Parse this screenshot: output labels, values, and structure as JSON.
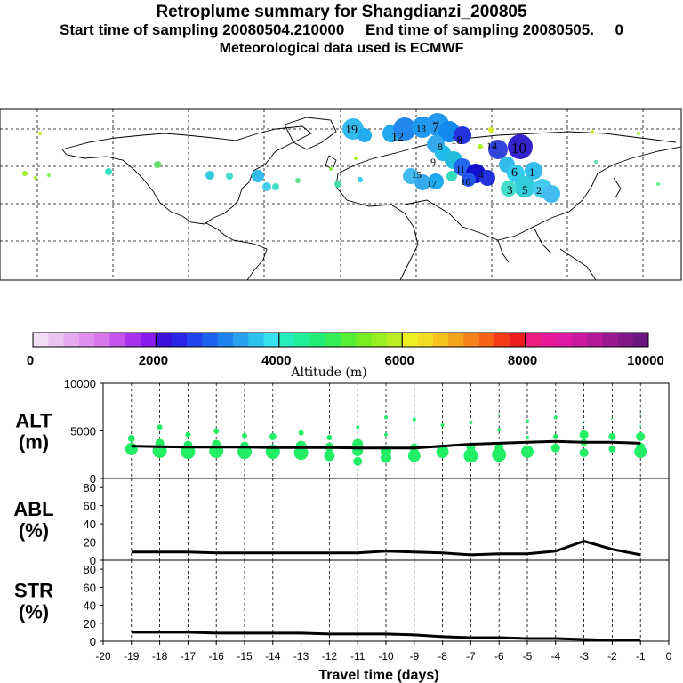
{
  "title": "Retroplume summary for Shangdianzi_200805",
  "subtitle_start": "Start time of sampling 20080504.210000",
  "subtitle_end": "End time of sampling 20080505.     0",
  "subtitle_met": "Meteorological data used is ECMWF",
  "map": {
    "labels": [
      "19",
      "15",
      "13",
      "12",
      "14",
      "7",
      "18",
      "10",
      "9",
      "17",
      "16",
      "6",
      "1",
      "4",
      "3",
      "2",
      "5",
      "11",
      "8"
    ]
  },
  "colorbar": {
    "tick_labels": [
      "0",
      "2000",
      "4000",
      "6000",
      "8000",
      "10000"
    ],
    "label": "Altitude (m)"
  },
  "chart_data": [
    {
      "type": "scatter+line",
      "panel_label": [
        "ALT",
        "(m)"
      ],
      "xlim": [
        -20,
        0
      ],
      "ylim": [
        0,
        10000
      ],
      "y_ticks": [
        "10000",
        "5000",
        "0"
      ],
      "line_x": [
        -19,
        -18,
        -17,
        -16,
        -15,
        -14,
        -13,
        -12,
        -11,
        -10,
        -9,
        -8,
        -7,
        -6,
        -5,
        -4,
        -3,
        -2,
        -1
      ],
      "line_y": [
        3400,
        3350,
        3300,
        3300,
        3300,
        3250,
        3250,
        3250,
        3200,
        3200,
        3200,
        3400,
        3600,
        3700,
        3800,
        3900,
        3800,
        3800,
        3700
      ],
      "scatter_color": "#22ee66",
      "scatter_points": [
        [
          -19,
          3100,
          7
        ],
        [
          -19,
          4200,
          4
        ],
        [
          -18,
          2900,
          8
        ],
        [
          -18,
          3700,
          5
        ],
        [
          -18,
          5400,
          3
        ],
        [
          -17,
          2800,
          8
        ],
        [
          -17,
          3500,
          5
        ],
        [
          -17,
          4600,
          3
        ],
        [
          -16,
          2900,
          8
        ],
        [
          -16,
          3600,
          5
        ],
        [
          -16,
          5000,
          3
        ],
        [
          -15,
          2800,
          8
        ],
        [
          -15,
          3400,
          5
        ],
        [
          -15,
          4500,
          3
        ],
        [
          -14,
          2800,
          8
        ],
        [
          -14,
          4400,
          4
        ],
        [
          -13,
          2700,
          8
        ],
        [
          -13,
          3400,
          6
        ],
        [
          -13,
          4800,
          3
        ],
        [
          -12,
          2400,
          6
        ],
        [
          -12,
          3300,
          5
        ],
        [
          -12,
          4300,
          3
        ],
        [
          -11,
          1800,
          5
        ],
        [
          -11,
          2900,
          6
        ],
        [
          -11,
          3600,
          6
        ],
        [
          -11,
          5400,
          2
        ],
        [
          -10,
          2200,
          6
        ],
        [
          -10,
          2900,
          6
        ],
        [
          -10,
          4600,
          2
        ],
        [
          -10,
          6400,
          2
        ],
        [
          -9,
          2400,
          7
        ],
        [
          -9,
          3200,
          5
        ],
        [
          -9,
          6200,
          2
        ],
        [
          -8,
          2800,
          7
        ],
        [
          -8,
          5600,
          2
        ],
        [
          -7,
          2400,
          8
        ],
        [
          -7,
          3300,
          5
        ],
        [
          -7,
          5900,
          2
        ],
        [
          -6,
          2500,
          8
        ],
        [
          -6,
          3300,
          5
        ],
        [
          -6,
          5100,
          2
        ],
        [
          -6,
          6700,
          1
        ],
        [
          -5,
          2800,
          7
        ],
        [
          -5,
          4300,
          2
        ],
        [
          -5,
          6000,
          2
        ],
        [
          -4,
          3200,
          5
        ],
        [
          -4,
          4400,
          3
        ],
        [
          -4,
          6400,
          2
        ],
        [
          -3,
          2700,
          5
        ],
        [
          -3,
          3800,
          4
        ],
        [
          -3,
          4600,
          5
        ],
        [
          -3,
          6000,
          1
        ],
        [
          -2,
          3100,
          4
        ],
        [
          -2,
          4400,
          4
        ],
        [
          -2,
          6300,
          1
        ],
        [
          -1,
          2800,
          7
        ],
        [
          -1,
          3300,
          5
        ],
        [
          -1,
          4400,
          5
        ],
        [
          -1,
          5500,
          1
        ],
        [
          -1,
          6800,
          1
        ]
      ],
      "line_color": "#000000"
    },
    {
      "type": "line",
      "panel_label": [
        "ABL",
        "(%)"
      ],
      "xlim": [
        -20,
        0
      ],
      "ylim": [
        0,
        90
      ],
      "y_ticks": [
        "80",
        "60",
        "40",
        "20",
        "0"
      ],
      "x": [
        -19,
        -18,
        -17,
        -16,
        -15,
        -14,
        -13,
        -12,
        -11,
        -10,
        -9,
        -8,
        -7,
        -6,
        -5,
        -4,
        -3,
        -2,
        -1
      ],
      "y": [
        9,
        9,
        9,
        8,
        8,
        8,
        8,
        8,
        8,
        10,
        9,
        8,
        6,
        7,
        7,
        10,
        21,
        12,
        6
      ],
      "line_color": "#000000"
    },
    {
      "type": "line",
      "panel_label": [
        "STR",
        "(%)"
      ],
      "xlim": [
        -20,
        0
      ],
      "ylim": [
        0,
        90
      ],
      "y_ticks": [
        "80",
        "60",
        "40",
        "20",
        "0"
      ],
      "x": [
        -19,
        -18,
        -17,
        -16,
        -15,
        -14,
        -13,
        -12,
        -11,
        -10,
        -9,
        -8,
        -7,
        -6,
        -5,
        -4,
        -3,
        -2,
        -1
      ],
      "y": [
        10,
        10,
        10,
        9,
        9,
        9,
        9,
        8,
        8,
        8,
        7,
        5,
        4,
        4,
        3,
        3,
        2,
        1,
        1
      ],
      "line_color": "#000000",
      "x_ticks": [
        "-20",
        "-19",
        "-18",
        "-17",
        "-16",
        "-15",
        "-14",
        "-13",
        "-12",
        "-11",
        "-10",
        "-9",
        "-8",
        "-7",
        "-6",
        "-5",
        "-4",
        "-3",
        "-2",
        "-1",
        "0"
      ],
      "xlabel": "Travel time (days)"
    }
  ]
}
